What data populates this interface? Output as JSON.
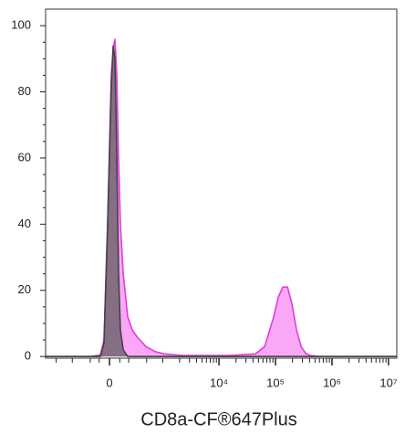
{
  "chart_data": {
    "type": "histogram-overlay",
    "x_label": "CD8a-CF®647Plus",
    "x_scale": "biexponential",
    "x": [
      -1550,
      -188,
      -88,
      -52,
      -17,
      17,
      35,
      52,
      70,
      88,
      106,
      136,
      188,
      248,
      316,
      485,
      723,
      1063,
      2250,
      14500,
      44300,
      64200,
      93100,
      112000,
      135000,
      163000,
      195000,
      236000,
      284000,
      341000,
      411000,
      596000,
      14000000
    ],
    "series": [
      {
        "color": "#e23be0",
        "fill": "#f9a3f4",
        "values": [
          0,
          0,
          0.5,
          5,
          40,
          85,
          93,
          96,
          85,
          60,
          40,
          25,
          12,
          8,
          6,
          3,
          1.5,
          0.8,
          0.3,
          0.3,
          0.8,
          3,
          12,
          18,
          21,
          21,
          16,
          8,
          3,
          1,
          0.3,
          0,
          0
        ]
      },
      {
        "color": "#444444",
        "fill": "#555555",
        "values": [
          0,
          0,
          0,
          4,
          40,
          82,
          94,
          90,
          60,
          25,
          8,
          2,
          0,
          0,
          0,
          0,
          0,
          0,
          0,
          0,
          0,
          0,
          0,
          0,
          0,
          0,
          0,
          0,
          0,
          0,
          0,
          0,
          0
        ]
      }
    ],
    "xlim": [
      -1550,
      14000000
    ],
    "ylim": [
      -0.5,
      105
    ],
    "xticks": [
      0,
      {
        "value": 10000,
        "label": "10⁴"
      },
      {
        "value": 100000,
        "label": "10⁵"
      },
      {
        "value": 1000000,
        "label": "10⁶"
      },
      {
        "value": 10000000,
        "label": "10⁷"
      }
    ],
    "xminor_ticks": [
      -1000,
      -500,
      -200,
      -100,
      100,
      200,
      500,
      1000,
      2000,
      3000,
      4000,
      5000,
      6000,
      7000,
      8000,
      9000,
      20000,
      30000,
      40000,
      50000,
      60000,
      70000,
      80000,
      90000,
      200000,
      300000,
      400000,
      500000,
      600000,
      700000,
      800000,
      900000,
      2000000,
      3000000,
      4000000,
      5000000,
      6000000,
      7000000,
      8000000,
      9000000
    ],
    "yticks": [
      0,
      20,
      40,
      60,
      80,
      100
    ],
    "yminor_ticks": [
      5,
      10,
      15,
      25,
      30,
      35,
      45,
      50,
      55,
      65,
      70,
      75,
      85,
      90,
      95
    ]
  }
}
